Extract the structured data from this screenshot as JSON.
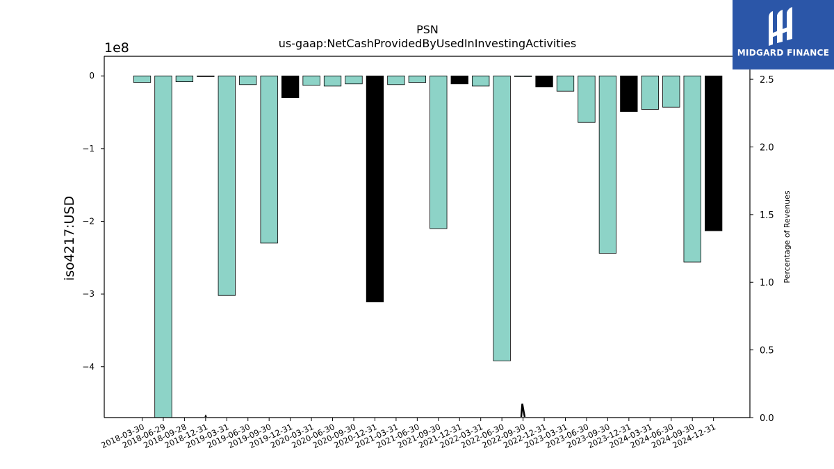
{
  "chart_data": {
    "type": "bar",
    "title": "PSN",
    "subtitle": "us-gaap:NetCashProvidedByUsedInInvestingActivities",
    "ylabel": "iso4217:USD",
    "y2label": "Percentage of Revenues",
    "y_offset_label": "1e8",
    "y_scale": 100000000,
    "ylim": [
      -4.7,
      0.27
    ],
    "y2lim": [
      0.0,
      2.67
    ],
    "yticks": [
      0,
      -1,
      -2,
      -3,
      -4
    ],
    "ytick_labels": [
      "0",
      "−1",
      "−2",
      "−3",
      "−4"
    ],
    "y2ticks": [
      0.0,
      0.5,
      1.0,
      1.5,
      2.0,
      2.5
    ],
    "y2tick_labels": [
      "0.0",
      "0.5",
      "1.0",
      "1.5",
      "2.0",
      "2.5"
    ],
    "categories": [
      "2018-03-30",
      "2018-06-29",
      "2018-09-28",
      "2018-12-31",
      "2019-03-31",
      "2019-06-30",
      "2019-09-30",
      "2019-12-31",
      "2020-03-31",
      "2020-06-30",
      "2020-09-30",
      "2020-12-31",
      "2021-03-31",
      "2021-06-30",
      "2021-09-30",
      "2021-12-31",
      "2022-03-31",
      "2022-06-30",
      "2022-09-30",
      "2022-12-31",
      "2023-03-31",
      "2023-06-30",
      "2023-09-30",
      "2023-12-31",
      "2024-03-31",
      "2024-06-30",
      "2024-09-30",
      "2024-12-31"
    ],
    "values": [
      -0.09,
      -4.7,
      -0.08,
      -0.01,
      -3.02,
      -0.12,
      -2.3,
      -0.3,
      -0.13,
      -0.14,
      -0.11,
      -3.11,
      -0.12,
      -0.09,
      -2.1,
      -0.11,
      -0.14,
      -3.92,
      -0.01,
      -0.15,
      -0.21,
      -0.64,
      -2.44,
      -0.49,
      -0.46,
      -0.43,
      -2.56,
      -2.13
    ],
    "fiscal_year_end": [
      false,
      false,
      false,
      true,
      false,
      false,
      false,
      true,
      false,
      false,
      false,
      true,
      false,
      false,
      false,
      true,
      false,
      false,
      false,
      true,
      false,
      false,
      false,
      true,
      false,
      false,
      false,
      true
    ],
    "colors": {
      "quarter": "#8dd3c7",
      "year_end": "#000000",
      "edge": "#000000",
      "background": "#ffffff"
    },
    "grid": false,
    "legend": "none"
  },
  "logo": {
    "text": "MIDGARD FINANCE",
    "icon": "midgard-logo-icon",
    "background": "#2b56a8"
  }
}
